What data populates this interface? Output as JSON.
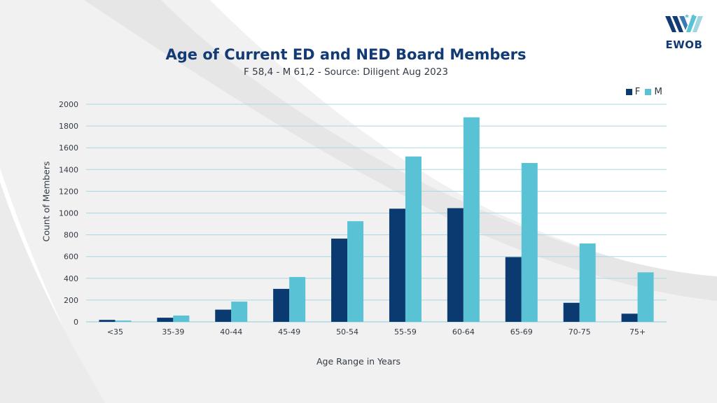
{
  "logo": {
    "text": "EWOB"
  },
  "colors": {
    "F": "#0b3a70",
    "M": "#5ac2d5",
    "grid": "#a9d7e3",
    "text": "#333a45",
    "title": "#123a75"
  },
  "chart_data": {
    "type": "bar",
    "title": "Age of Current ED and NED Board Members",
    "subtitle": "F 58,4 - M 61,2 - Source:  Diligent Aug 2023",
    "xlabel": "Age Range in Years",
    "ylabel": "Count of Members",
    "ylim": [
      0,
      2000
    ],
    "yticks": [
      0,
      200,
      400,
      600,
      800,
      1000,
      1200,
      1400,
      1600,
      1800,
      2000
    ],
    "grid": true,
    "legend_position": "top-right",
    "categories": [
      "<35",
      "35-39",
      "40-44",
      "45-49",
      "50-54",
      "55-59",
      "60-64",
      "65-69",
      "70-75",
      "75+"
    ],
    "series": [
      {
        "name": "F",
        "values": [
          18,
          38,
          112,
          303,
          765,
          1040,
          1045,
          595,
          175,
          75
        ]
      },
      {
        "name": "M",
        "values": [
          12,
          58,
          186,
          412,
          925,
          1520,
          1880,
          1460,
          720,
          455
        ]
      }
    ]
  }
}
